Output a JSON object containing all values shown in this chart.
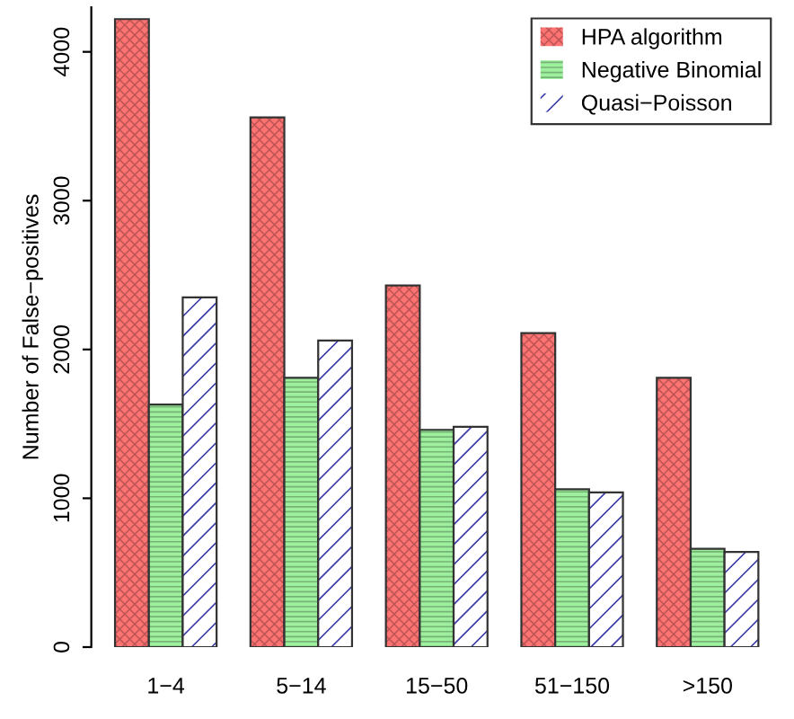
{
  "chart_data": {
    "type": "bar",
    "ylabel": "Number of False−positives",
    "categories": [
      "1−4",
      "5−14",
      "15−50",
      "51−150",
      ">150"
    ],
    "series": [
      {
        "name": "HPA algorithm",
        "color": "#ff7373",
        "values": [
          4220,
          3560,
          2430,
          2110,
          1810
        ]
      },
      {
        "name": "Negative Binomial",
        "color": "#9ef09e",
        "values": [
          1630,
          1810,
          1460,
          1060,
          660
        ]
      },
      {
        "name": "Quasi−Poisson",
        "color": "#3a3aa8",
        "values": [
          2350,
          2060,
          1480,
          1040,
          640
        ]
      }
    ],
    "ylim": [
      0,
      4300
    ],
    "yticks": [
      0,
      1000,
      2000,
      3000,
      4000
    ],
    "grid": false,
    "legend": "top right"
  }
}
